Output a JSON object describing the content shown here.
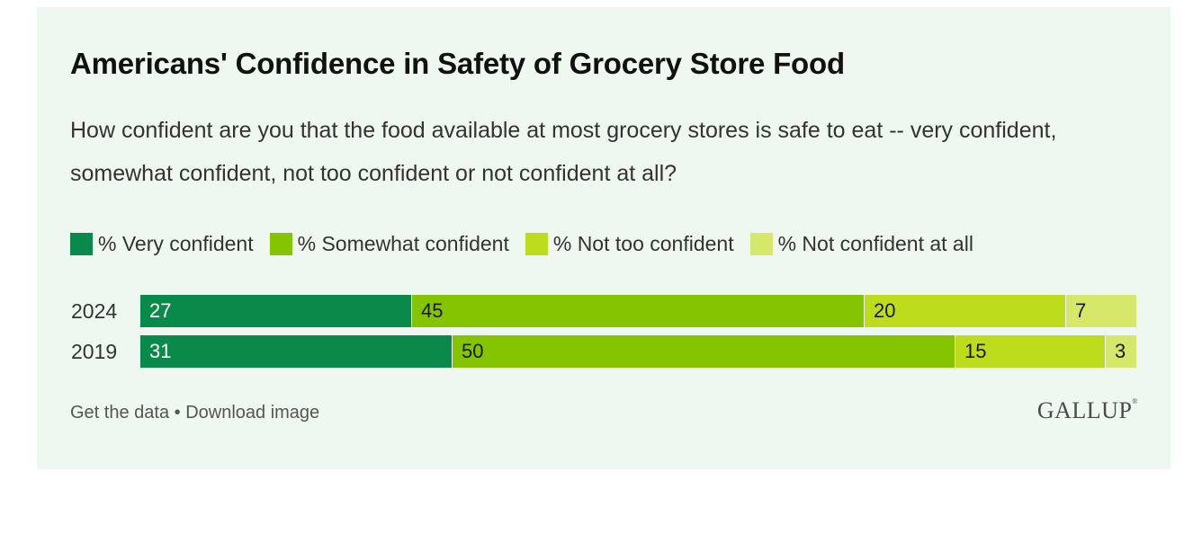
{
  "chart_data": {
    "type": "bar",
    "orientation": "horizontal",
    "stacked": true,
    "title": "Americans' Confidence in Safety of Grocery Store Food",
    "subtitle": "How confident are you that the food available at most grocery stores is safe to eat -- very confident, somewhat confident, not too confident or not confident at all?",
    "categories": [
      "2024",
      "2019"
    ],
    "series": [
      {
        "name": "% Very confident",
        "color": "#0a8a4a",
        "text_color": "#ffffff",
        "values": [
          27,
          31
        ]
      },
      {
        "name": "% Somewhat confident",
        "color": "#84c400",
        "text_color": "#1a1a1a",
        "values": [
          45,
          50
        ]
      },
      {
        "name": "% Not too confident",
        "color": "#bcdc1c",
        "text_color": "#1a1a1a",
        "values": [
          20,
          15
        ]
      },
      {
        "name": "% Not confident at all",
        "color": "#d6e86a",
        "text_color": "#1a1a1a",
        "values": [
          7,
          3
        ]
      }
    ],
    "legend_position": "top-left",
    "grid": false
  },
  "footer": {
    "get_data": "Get the data",
    "separator": " • ",
    "download": "Download image"
  },
  "brand": {
    "name": "GALLUP",
    "mark": "®"
  }
}
